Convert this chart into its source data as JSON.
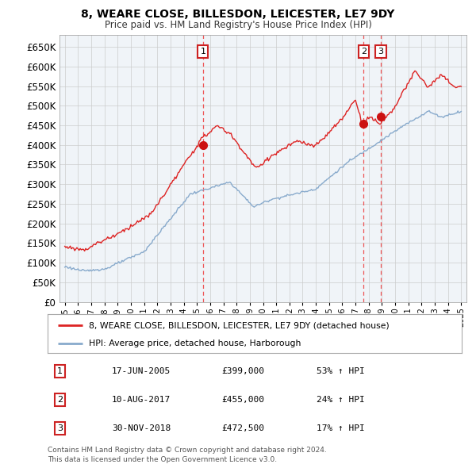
{
  "title1": "8, WEARE CLOSE, BILLESDON, LEICESTER, LE7 9DY",
  "title2": "Price paid vs. HM Land Registry's House Price Index (HPI)",
  "line1_color": "#dd2222",
  "line2_color": "#88aacc",
  "vline_color": "#ee4444",
  "marker_color": "#cc1111",
  "sale_dates": [
    2005.46,
    2017.61,
    2018.92
  ],
  "sale_prices": [
    399000,
    455000,
    472500
  ],
  "sale_labels": [
    "1",
    "2",
    "3"
  ],
  "sale_info": [
    {
      "label": "1",
      "date": "17-JUN-2005",
      "price": "£399,000",
      "pct": "53% ↑ HPI"
    },
    {
      "label": "2",
      "date": "10-AUG-2017",
      "price": "£455,000",
      "pct": "24% ↑ HPI"
    },
    {
      "label": "3",
      "date": "30-NOV-2018",
      "price": "£472,500",
      "pct": "17% ↑ HPI"
    }
  ],
  "legend1": "8, WEARE CLOSE, BILLESDON, LEICESTER, LE7 9DY (detached house)",
  "legend2": "HPI: Average price, detached house, Harborough",
  "footnote1": "Contains HM Land Registry data © Crown copyright and database right 2024.",
  "footnote2": "This data is licensed under the Open Government Licence v3.0.",
  "yticks": [
    0,
    50000,
    100000,
    150000,
    200000,
    250000,
    300000,
    350000,
    400000,
    450000,
    500000,
    550000,
    600000,
    650000
  ],
  "grid_color": "#cccccc",
  "background_color": "#f0f4f8"
}
